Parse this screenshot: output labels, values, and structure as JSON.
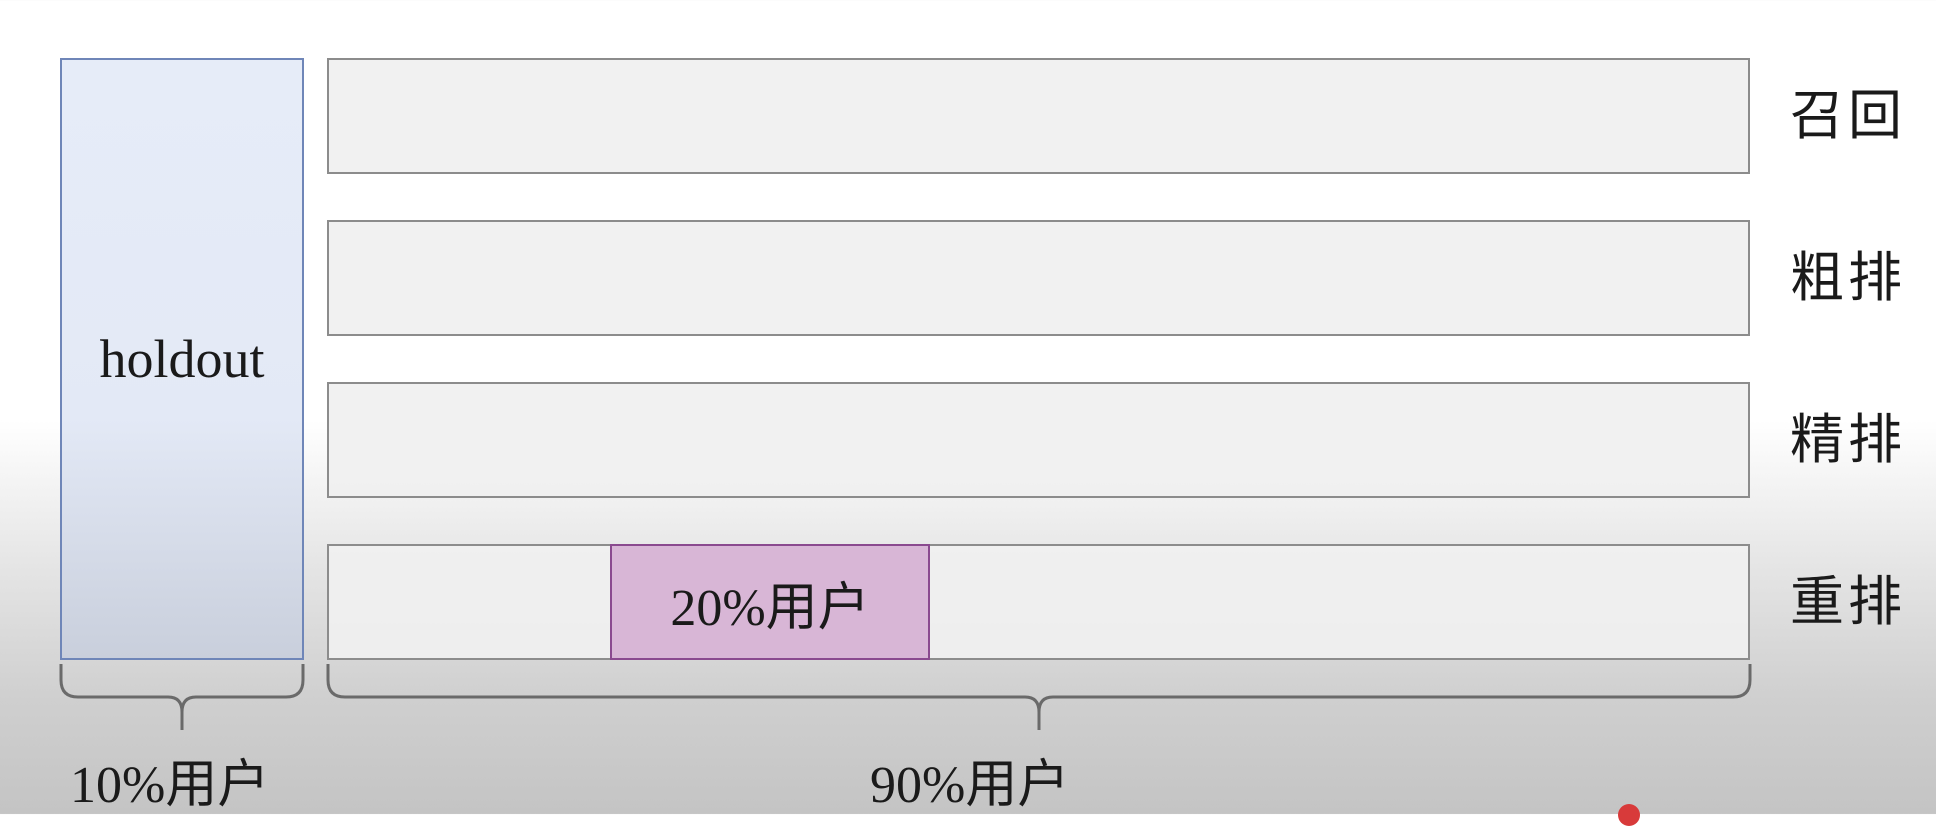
{
  "holdout": {
    "label": "holdout"
  },
  "layers": [
    {
      "label": "召回"
    },
    {
      "label": "粗排"
    },
    {
      "label": "精排"
    },
    {
      "label": "重排"
    }
  ],
  "experiment": {
    "label": "20%用户"
  },
  "brackets": {
    "holdout_share": "10%用户",
    "remaining_share": "90%用户"
  },
  "colors": {
    "holdout_fill": "#e3e9f6",
    "holdout_border": "#6f86b8",
    "layer_fill": "#f0f0f0",
    "layer_border": "#8c8c8c",
    "experiment_fill": "#d8b6d6",
    "experiment_border": "#8a4a8f"
  }
}
